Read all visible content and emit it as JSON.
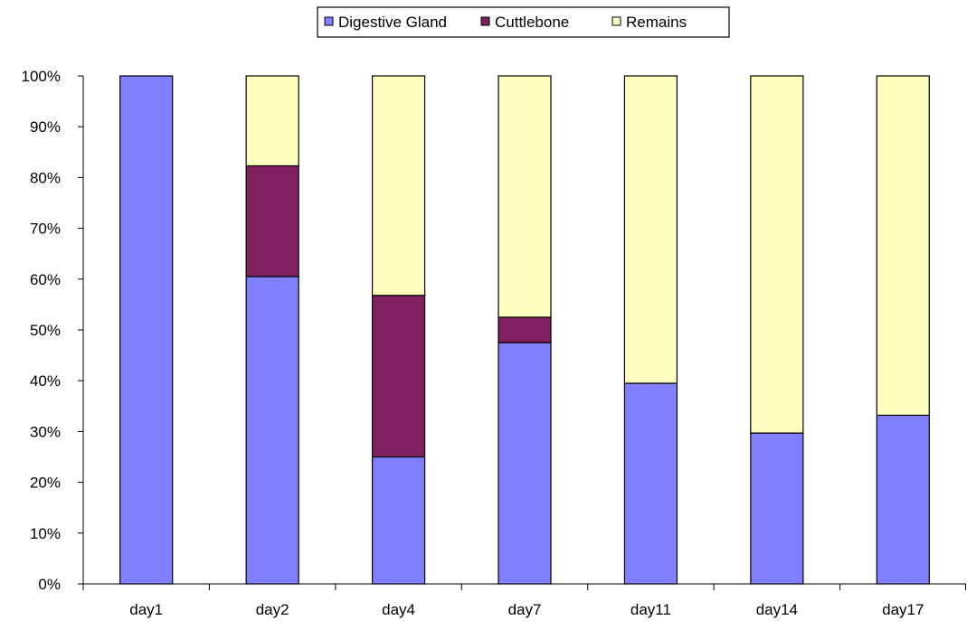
{
  "chart_data": {
    "type": "bar",
    "stacked": "percent",
    "categories": [
      "day1",
      "day2",
      "day4",
      "day7",
      "day11",
      "day14",
      "day17"
    ],
    "series": [
      {
        "name": "Digestive Gland",
        "color": "#8080ff",
        "values": [
          100,
          60.5,
          25.0,
          47.5,
          39.5,
          29.7,
          33.2
        ]
      },
      {
        "name": "Cuttlebone",
        "color": "#80205e",
        "values": [
          0,
          21.8,
          31.8,
          5.0,
          0,
          0,
          0
        ]
      },
      {
        "name": "Remains",
        "color": "#ffffc0",
        "values": [
          0,
          17.7,
          43.2,
          47.5,
          60.5,
          70.3,
          66.8
        ]
      }
    ],
    "y_ticks": [
      "0%",
      "10%",
      "20%",
      "30%",
      "40%",
      "50%",
      "60%",
      "70%",
      "80%",
      "90%",
      "100%"
    ],
    "ylim": [
      0,
      100
    ],
    "legend_position": "top",
    "grid": false
  }
}
